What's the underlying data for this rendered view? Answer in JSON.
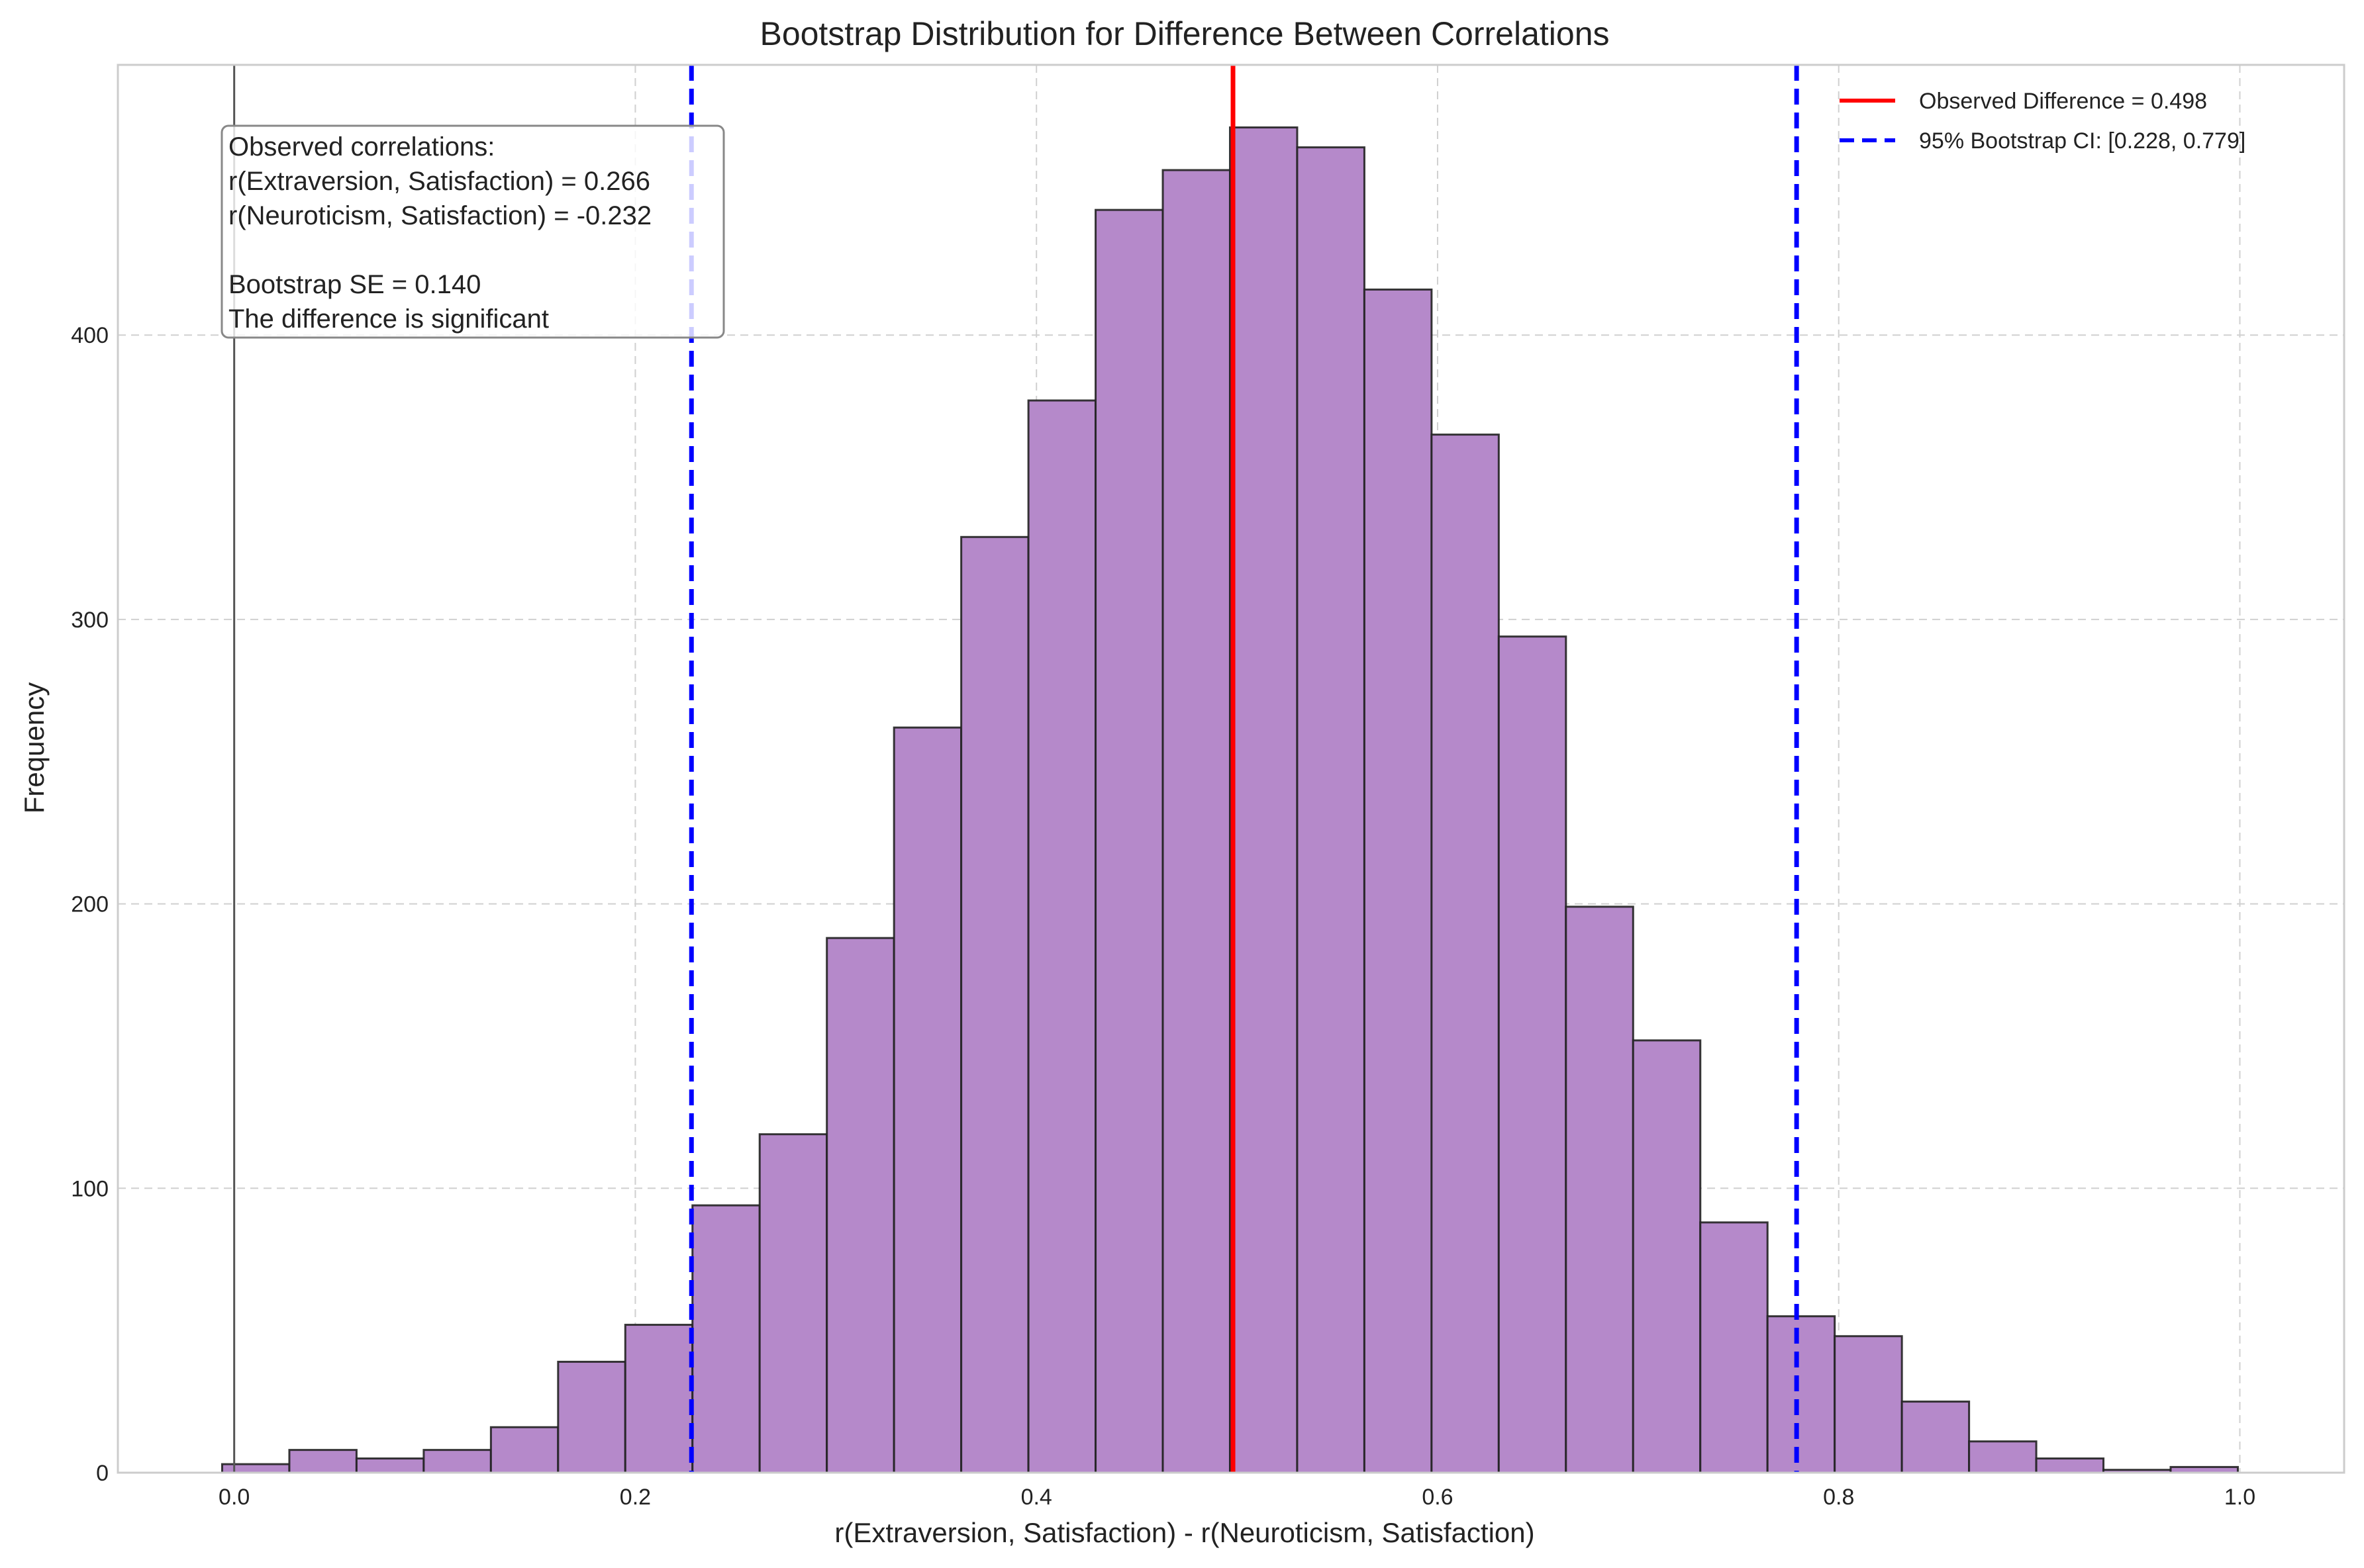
{
  "chart_data": {
    "type": "bar",
    "subtype": "histogram",
    "title": "Bootstrap Distribution for Difference Between Correlations",
    "xlabel": "r(Extraversion, Satisfaction) - r(Neuroticism, Satisfaction)",
    "ylabel": "Frequency",
    "xlim": [
      -0.058,
      1.052
    ],
    "ylim": [
      0,
      495
    ],
    "xticks": [
      0.0,
      0.2,
      0.4,
      0.6,
      0.8,
      1.0
    ],
    "xtick_labels": [
      "0.0",
      "0.2",
      "0.4",
      "0.6",
      "0.8",
      "1.0"
    ],
    "yticks": [
      0,
      100,
      200,
      300,
      400
    ],
    "ytick_labels": [
      "0",
      "100",
      "200",
      "300",
      "400"
    ],
    "grid": true,
    "bin_start": -0.006,
    "bin_width": 0.0335,
    "values": [
      3,
      8,
      5,
      8,
      16,
      39,
      52,
      94,
      119,
      188,
      262,
      329,
      377,
      444,
      458,
      473,
      466,
      416,
      365,
      294,
      199,
      152,
      88,
      55,
      48,
      25,
      11,
      5,
      1,
      2
    ],
    "bar_color": "#b589ca",
    "bar_edge_color": "#222222",
    "zero_line": {
      "x": 0.0,
      "color": "#555555"
    },
    "observed_line": {
      "x": 0.498,
      "color": "#ff0000",
      "label": "Observed Difference = 0.498"
    },
    "ci_lines": {
      "lower": 0.228,
      "upper": 0.779,
      "color": "#0000ff",
      "label": "95% Bootstrap CI: [0.228, 0.779]"
    },
    "legend_position": "top-right",
    "annotation_lines": [
      "Observed correlations:",
      "r(Extraversion, Satisfaction) = 0.266",
      "r(Neuroticism, Satisfaction) = -0.232",
      "",
      "Bootstrap SE = 0.140",
      "The difference is significant"
    ],
    "annotation_position": "top-left"
  }
}
